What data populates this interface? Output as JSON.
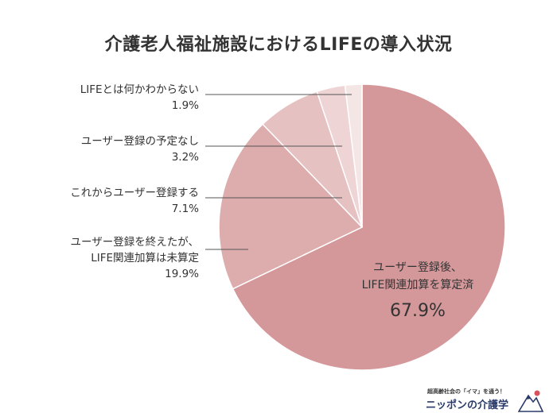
{
  "chart_data": {
    "type": "pie",
    "title": "介護老人福祉施設におけるLIFEの導入状況",
    "slices": [
      {
        "label_lines": [
          "ユーザー登録後、",
          "LIFE関連加算を算定済"
        ],
        "value": 67.9,
        "value_label": "67.9%",
        "color": "#d4979a"
      },
      {
        "label_lines": [
          "ユーザー登録を終えたが、",
          "LIFE関連加算は未算定"
        ],
        "value": 19.9,
        "value_label": "19.9%",
        "color": "#ddacad"
      },
      {
        "label_lines": [
          "これからユーザー登録する"
        ],
        "value": 7.1,
        "value_label": "7.1%",
        "color": "#e6c1c2"
      },
      {
        "label_lines": [
          "ユーザー登録の予定なし"
        ],
        "value": 3.2,
        "value_label": "3.2%",
        "color": "#eed4d5"
      },
      {
        "label_lines": [
          "LIFEとは何かわからない"
        ],
        "value": 1.9,
        "value_label": "1.9%",
        "color": "#f5e6e6"
      }
    ]
  },
  "logo": {
    "tagline": "超高齢社会の「イマ」を通う！",
    "name": "ニッポンの介護学"
  }
}
